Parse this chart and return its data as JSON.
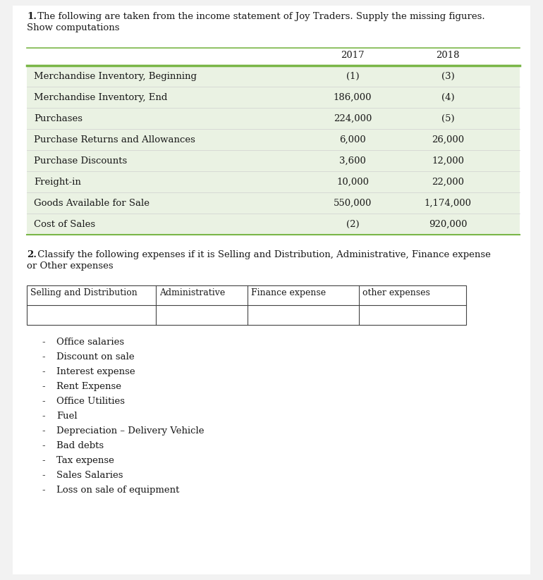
{
  "page_bg": "#f2f2f2",
  "content_bg": "#ffffff",
  "title1_bold": "1.",
  "title1_rest": " The following are taken from the income statement of Joy Traders. Supply the missing figures.",
  "title1b": "Show computations",
  "table1_rows": [
    [
      "Merchandise Inventory, Beginning",
      "(1)",
      "(3)"
    ],
    [
      "Merchandise Inventory, End",
      "186,000",
      "(4)"
    ],
    [
      "Purchases",
      "224,000",
      "(5)"
    ],
    [
      "Purchase Returns and Allowances",
      "6,000",
      "26,000"
    ],
    [
      "Purchase Discounts",
      "3,600",
      "12,000"
    ],
    [
      "Freight-in",
      "10,000",
      "22,000"
    ],
    [
      "Goods Available for Sale",
      "550,000",
      "1,174,000"
    ],
    [
      "Cost of Sales",
      "(2)",
      "920,000"
    ]
  ],
  "table1_bg": "#eaf2e3",
  "table1_line_color": "#7ab648",
  "title2_bold": "2.",
  "title2_rest": " Classify the following expenses if it is Selling and Distribution, Administrative, Finance expense\nor Other expenses",
  "table2_headers": [
    "Selling and Distribution",
    "Administrative",
    "Finance expense",
    "other expenses"
  ],
  "bullet_items": [
    "Office salaries",
    "Discount on sale",
    "Interest expense",
    "Rent Expense",
    "Office Utilities",
    "Fuel",
    "Depreciation – Delivery Vehicle",
    "Bad debts",
    "Tax expense",
    "Sales Salaries",
    "Loss on sale of equipment"
  ],
  "text_color": "#1a1a1a",
  "font_family": "DejaVu Serif"
}
